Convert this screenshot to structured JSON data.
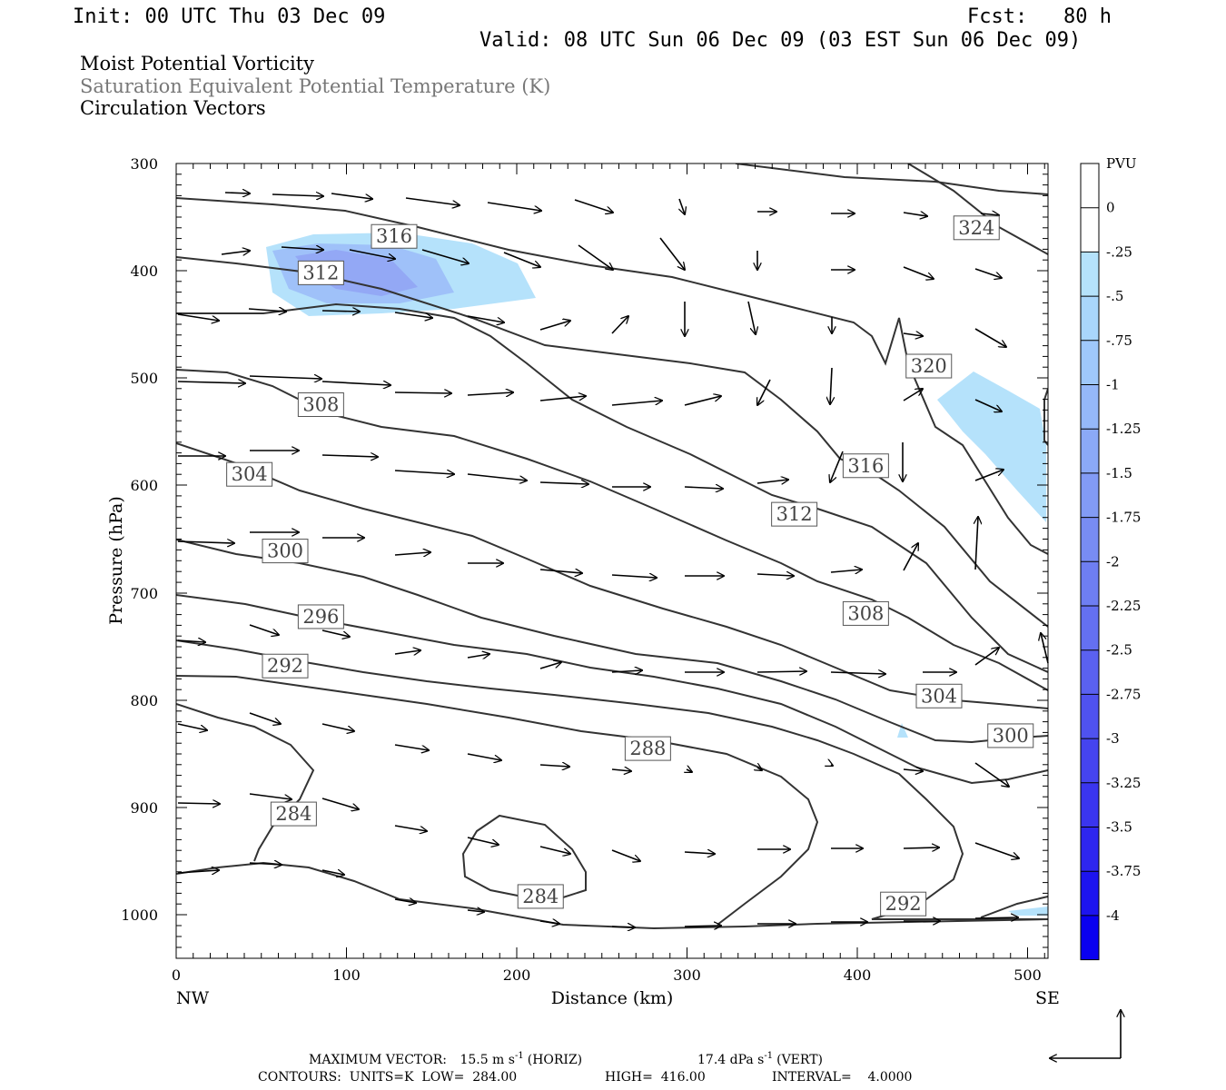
{
  "header": {
    "init": "Init: 00 UTC Thu 03 Dec 09",
    "fcst": "Fcst:   80 h",
    "valid": "Valid: 08 UTC Sun 06 Dec 09 (03 EST Sun 06 Dec 09)"
  },
  "titles": {
    "line1": "Moist Potential Vorticity",
    "line2": "Saturation Equivalent Potential Temperature (K)",
    "line3": "Circulation Vectors"
  },
  "colors": {
    "pv_light": "#b5e2fb",
    "pv_mid": "#9fc1f9",
    "pv_dark": "#8f9cf3",
    "contour": "#333333",
    "title2": "#777777"
  },
  "chart_data": {
    "type": "heatmap",
    "description_fields": "cross-section of PV (shaded), theta-es (contours), circulation vectors",
    "xlabel": "Distance (km)",
    "ylabel": "Pressure (hPa)",
    "x_ticks": [
      "0",
      "100",
      "200",
      "300",
      "400",
      "500"
    ],
    "y_ticks": [
      "300",
      "400",
      "500",
      "600",
      "700",
      "800",
      "900",
      "1000"
    ],
    "x_end_labels": {
      "left": "NW",
      "right": "SE"
    },
    "xlim": [
      0,
      512
    ],
    "ylim": [
      1040,
      300
    ],
    "y_scale": "log-pressure",
    "colorbar": {
      "unit": "PVU",
      "labels": [
        "0",
        "-.25",
        "-.5",
        "-.75",
        "-1",
        "-1.25",
        "-1.5",
        "-1.75",
        "-2",
        "-2.25",
        "-2.5",
        "-2.75",
        "-3",
        "-3.25",
        "-3.5",
        "-3.75",
        "-4"
      ],
      "colors": [
        "#ffffff",
        "#ffffff",
        "#b5e2fb",
        "#a9d6fb",
        "#9fc8fb",
        "#95b8f9",
        "#8ba9f7",
        "#829bf5",
        "#788cf3",
        "#6e7ef2",
        "#6470f1",
        "#5a61f0",
        "#4f52ef",
        "#4544ef",
        "#3a35ef",
        "#2e26ef",
        "#1d14ef",
        "#0a00f0"
      ]
    },
    "contour_labels": [
      {
        "value": "316",
        "x": 128,
        "p": 368
      },
      {
        "value": "312",
        "x": 85,
        "p": 402
      },
      {
        "value": "324",
        "x": 470,
        "p": 360
      },
      {
        "value": "320",
        "x": 442,
        "p": 489
      },
      {
        "value": "308",
        "x": 85,
        "p": 525
      },
      {
        "value": "316",
        "x": 405,
        "p": 582
      },
      {
        "value": "304",
        "x": 43,
        "p": 590
      },
      {
        "value": "312",
        "x": 363,
        "p": 627
      },
      {
        "value": "300",
        "x": 64,
        "p": 661
      },
      {
        "value": "308",
        "x": 405,
        "p": 719
      },
      {
        "value": "296",
        "x": 85,
        "p": 722
      },
      {
        "value": "292",
        "x": 64,
        "p": 768
      },
      {
        "value": "304",
        "x": 448,
        "p": 796
      },
      {
        "value": "288",
        "x": 277,
        "p": 845
      },
      {
        "value": "300",
        "x": 490,
        "p": 833
      },
      {
        "value": "284",
        "x": 69,
        "p": 906
      },
      {
        "value": "284",
        "x": 214,
        "p": 983
      },
      {
        "value": "292",
        "x": 427,
        "p": 990
      }
    ]
  },
  "footer": {
    "maxvec_label": "MAXIMUM VECTOR:",
    "horiz": "15.5 m s",
    "horiz_suffix": "(HORIZ)",
    "vert": "17.4 dPa s",
    "vert_suffix": "(VERT)",
    "exp": "-1",
    "contours": "CONTOURS:  UNITS=K  LOW=  284.00",
    "high": "HIGH=  416.00",
    "interval": "INTERVAL=    4.0000"
  }
}
